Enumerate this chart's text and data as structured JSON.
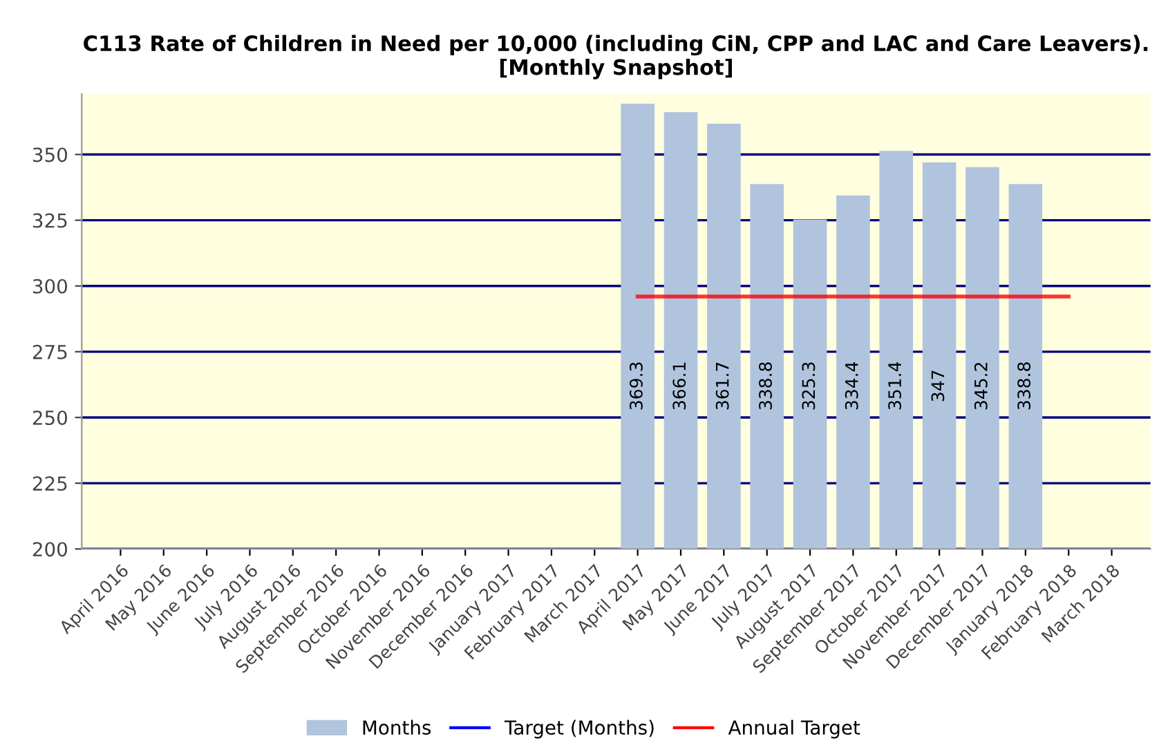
{
  "chart_data": {
    "type": "bar",
    "title": "C113 Rate of Children in Need per 10,000 (including CiN, CPP and LAC and Care Leavers).\n[Monthly Snapshot]",
    "categories": [
      "April 2016",
      "May 2016",
      "June 2016",
      "July 2016",
      "August 2016",
      "September 2016",
      "October 2016",
      "November 2016",
      "December 2016",
      "January 2017",
      "February 2017",
      "March 2017",
      "April 2017",
      "May 2017",
      "June 2017",
      "July 2017",
      "August 2017",
      "September 2017",
      "October 2017",
      "November 2017",
      "December 2017",
      "January 2018",
      "February 2018",
      "March 2018"
    ],
    "series": [
      {
        "name": "Months",
        "color": "#b0c4de",
        "values": [
          null,
          null,
          null,
          null,
          null,
          null,
          null,
          null,
          null,
          null,
          null,
          null,
          369.3,
          366.1,
          361.7,
          338.8,
          325.3,
          334.4,
          351.4,
          347,
          345.2,
          338.8,
          null,
          null
        ],
        "value_labels": [
          null,
          null,
          null,
          null,
          null,
          null,
          null,
          null,
          null,
          null,
          null,
          null,
          "369.3",
          "366.1",
          "361.7",
          "338.8",
          "325.3",
          "334.4",
          "351.4",
          "347",
          "345.2",
          "338.8",
          null,
          null
        ]
      },
      {
        "name": "Target (Months)",
        "type": "line",
        "color": "#0000ff",
        "values": [
          null,
          null,
          null,
          null,
          null,
          null,
          null,
          null,
          null,
          null,
          null,
          null,
          null,
          null,
          null,
          null,
          null,
          null,
          null,
          null,
          null,
          null,
          null,
          null
        ]
      },
      {
        "name": "Annual Target",
        "type": "line",
        "color": "#ff0000",
        "values": [
          null,
          null,
          null,
          null,
          null,
          null,
          null,
          null,
          null,
          null,
          null,
          null,
          296,
          296,
          296,
          296,
          296,
          296,
          296,
          296,
          296,
          296,
          296,
          null
        ]
      }
    ],
    "ylim": [
      200,
      373
    ],
    "yticks": [
      200,
      225,
      250,
      275,
      300,
      325,
      350
    ],
    "grid": "y",
    "legend": "bottom"
  }
}
